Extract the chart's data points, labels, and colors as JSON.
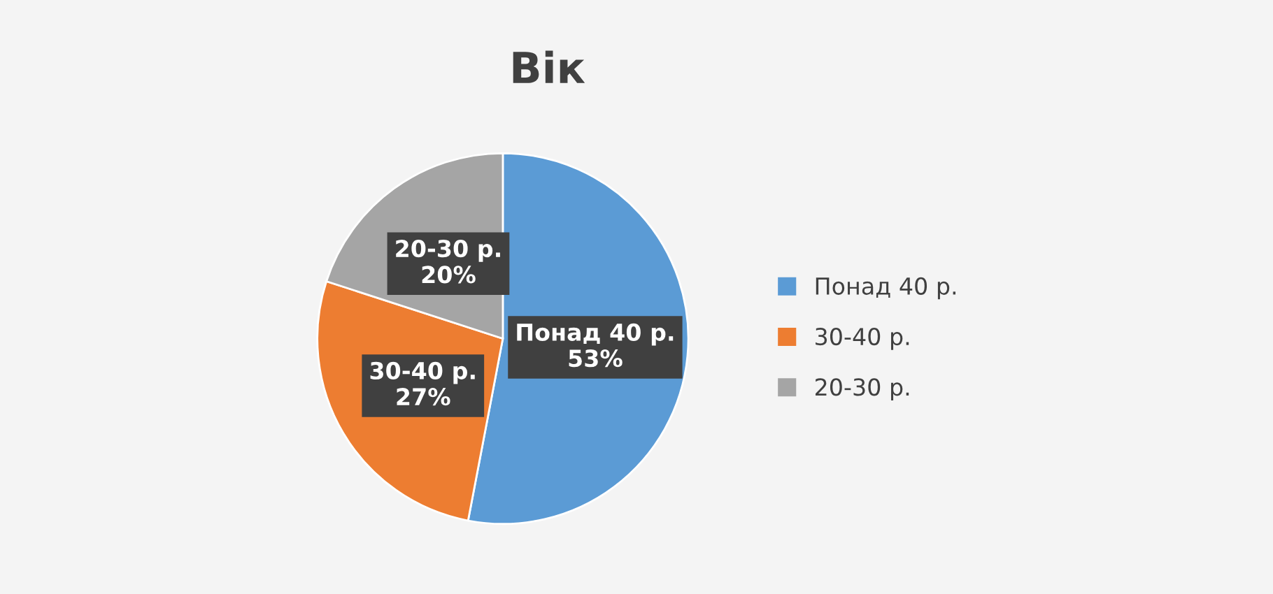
{
  "chart_data": {
    "type": "pie",
    "title": "Вік",
    "categories": [
      "Понад 40 р.",
      "30-40 р.",
      "20-30 р."
    ],
    "values": [
      53,
      27,
      20
    ],
    "value_labels": [
      "53%",
      "27%",
      "20%"
    ],
    "colors": [
      "#5b9bd5",
      "#ed7d31",
      "#a5a5a5"
    ],
    "legend": "right"
  }
}
